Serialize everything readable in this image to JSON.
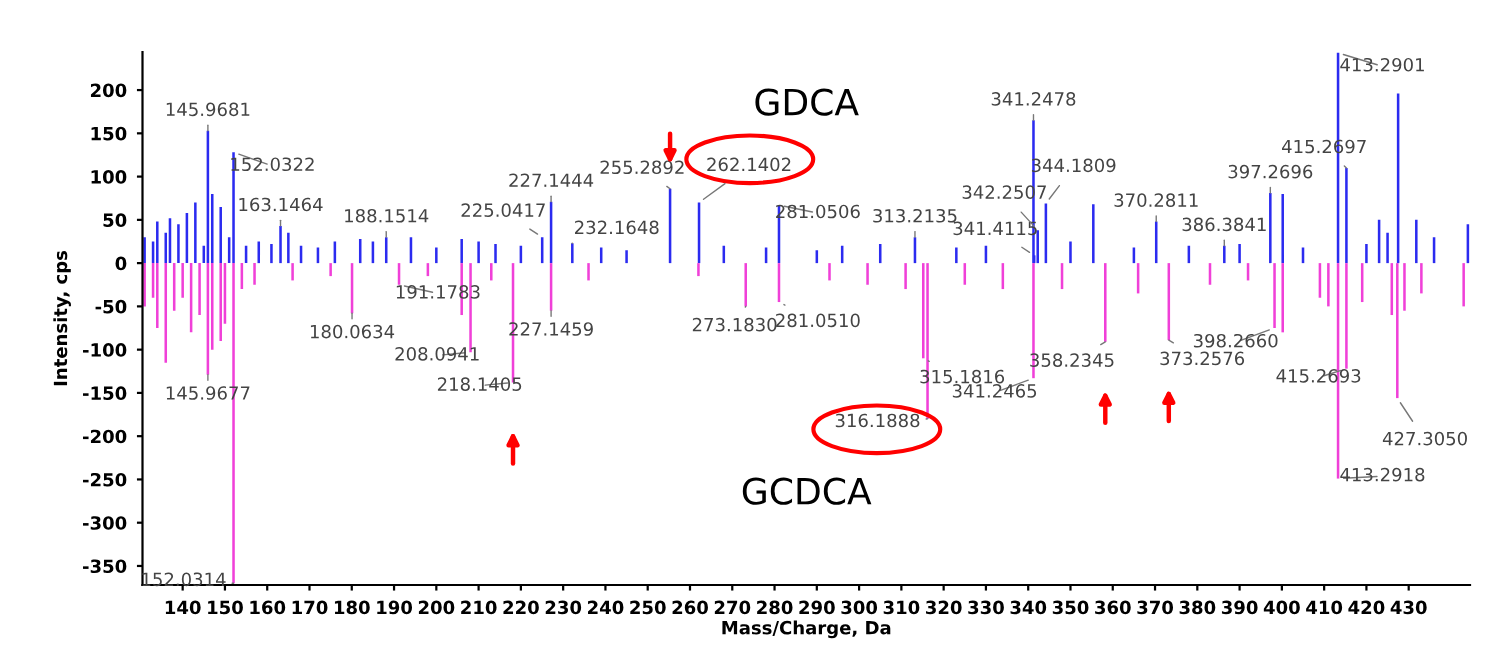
{
  "chart_data": {
    "type": "bar",
    "xlabel": "Mass/Charge, Da",
    "ylabel": "Intensity, cps",
    "xlim": [
      130.5,
      444.5
    ],
    "ylim": [
      -372,
      244
    ],
    "xticks": [
      140,
      150,
      160,
      170,
      180,
      190,
      200,
      210,
      220,
      230,
      240,
      250,
      260,
      270,
      280,
      290,
      300,
      310,
      320,
      330,
      340,
      350,
      360,
      370,
      380,
      390,
      400,
      410,
      420,
      430
    ],
    "yticks": [
      -350,
      -300,
      -250,
      -200,
      -150,
      -100,
      -50,
      0,
      50,
      100,
      150,
      200
    ],
    "grid": false,
    "legend": false,
    "series": [
      {
        "name": "GDCA",
        "color": "#2b2bf0",
        "x": [
          131,
          133,
          134,
          136,
          137,
          139,
          141,
          143,
          145,
          145.9681,
          147,
          149,
          151,
          152.0322,
          155,
          158,
          161,
          163.1464,
          165,
          168,
          172,
          176,
          182,
          185,
          188.1514,
          194,
          200,
          206,
          210,
          214,
          220,
          225.0417,
          227.1444,
          232.1648,
          239,
          245,
          255.2892,
          262.1402,
          268,
          278,
          281.0506,
          290,
          296,
          305,
          313.2135,
          323,
          330,
          341.2478,
          341.4115,
          342.2507,
          344.1809,
          350,
          355.4,
          365,
          370.2811,
          378,
          386.3841,
          390,
          397.2696,
          400.2,
          405,
          413.2901,
          415.2697,
          420,
          423,
          425,
          427.5,
          431.8,
          436,
          444
        ],
        "values": [
          30,
          25,
          48,
          35,
          52,
          45,
          58,
          70,
          20,
          153,
          80,
          65,
          30,
          128,
          20,
          25,
          22,
          43,
          35,
          20,
          18,
          25,
          28,
          25,
          30,
          30,
          18,
          28,
          25,
          22,
          20,
          30,
          71,
          23,
          18,
          15,
          86,
          70,
          20,
          18,
          67,
          15,
          20,
          22,
          30,
          18,
          20,
          165,
          9,
          38,
          69,
          25,
          68,
          18,
          48,
          20,
          20,
          22,
          81,
          80,
          18,
          243,
          110,
          22,
          50,
          35,
          196,
          50,
          30,
          45
        ]
      },
      {
        "name": "GCDCA",
        "color": "#f040d8",
        "x": [
          131,
          133,
          134,
          136,
          138,
          140,
          142,
          144,
          145.9677,
          147,
          149,
          150,
          152.0314,
          154,
          157,
          166,
          175,
          180.0634,
          191.1783,
          198,
          206,
          208.0941,
          213,
          218.1405,
          227.1459,
          236,
          262,
          273.183,
          281.051,
          293,
          302,
          311,
          315.1816,
          316.1888,
          325,
          334,
          341.2465,
          348,
          358.2345,
          366,
          373.2576,
          383,
          392,
          398.266,
          400.2,
          409,
          411,
          413.2918,
          415.2693,
          419,
          426,
          427.305,
          429,
          433,
          443
        ],
        "values": [
          -50,
          -40,
          -75,
          -115,
          -55,
          -40,
          -80,
          -60,
          -129,
          -100,
          -90,
          -70,
          -370,
          -30,
          -25,
          -20,
          -15,
          -58,
          -25,
          -15,
          -60,
          -103,
          -20,
          -138,
          -55,
          -20,
          -15,
          -50,
          -45,
          -20,
          -25,
          -30,
          -110,
          -180,
          -25,
          -30,
          -133,
          -30,
          -91,
          -35,
          -89,
          -25,
          -20,
          -75,
          -80,
          -40,
          -50,
          -249,
          -122,
          -45,
          -60,
          -156,
          -55,
          -35,
          -50
        ]
      }
    ],
    "annotations": [
      {
        "text": "145.9681",
        "x": 145.9681,
        "y": 153
      },
      {
        "text": "152.0322",
        "x": 152.0322,
        "y": 128
      },
      {
        "text": "163.1464",
        "x": 163.1464,
        "y": 43
      },
      {
        "text": "188.1514",
        "x": 188.1514,
        "y": 30
      },
      {
        "text": "225.0417",
        "x": 225.0417,
        "y": 30
      },
      {
        "text": "227.1444",
        "x": 227.1444,
        "y": 71
      },
      {
        "text": "232.1648",
        "x": 232.1648,
        "y": 23
      },
      {
        "text": "255.2892",
        "x": 255.2892,
        "y": 86
      },
      {
        "text": "262.1402",
        "x": 262.1402,
        "y": 70
      },
      {
        "text": "281.0506",
        "x": 281.0506,
        "y": 67
      },
      {
        "text": "313.2135",
        "x": 313.2135,
        "y": 30
      },
      {
        "text": "341.2478",
        "x": 341.2478,
        "y": 165
      },
      {
        "text": "341.4115",
        "x": 341.4115,
        "y": 9
      },
      {
        "text": "342.2507",
        "x": 342.2507,
        "y": 38
      },
      {
        "text": "344.1809",
        "x": 344.1809,
        "y": 69
      },
      {
        "text": "370.2811",
        "x": 370.2811,
        "y": 48
      },
      {
        "text": "386.3841",
        "x": 386.3841,
        "y": 20
      },
      {
        "text": "397.2696",
        "x": 397.2696,
        "y": 81
      },
      {
        "text": "413.2901",
        "x": 413.2901,
        "y": 243
      },
      {
        "text": "415.2697",
        "x": 415.2697,
        "y": 110
      },
      {
        "text": "145.9677",
        "x": 145.9677,
        "y": -129
      },
      {
        "text": "152.0314",
        "x": 152.0314,
        "y": -370
      },
      {
        "text": "180.0634",
        "x": 180.0634,
        "y": -58
      },
      {
        "text": "191.1783",
        "x": 191.1783,
        "y": -25
      },
      {
        "text": "208.0941",
        "x": 208.0941,
        "y": -103
      },
      {
        "text": "218.1405",
        "x": 218.1405,
        "y": -138
      },
      {
        "text": "227.1459",
        "x": 227.1459,
        "y": -55
      },
      {
        "text": "273.1830",
        "x": 273.183,
        "y": -50
      },
      {
        "text": "281.0510",
        "x": 281.051,
        "y": -45
      },
      {
        "text": "315.1816",
        "x": 315.1816,
        "y": -110
      },
      {
        "text": "316.1888",
        "x": 316.1888,
        "y": -180
      },
      {
        "text": "341.2465",
        "x": 341.2465,
        "y": -133
      },
      {
        "text": "358.2345",
        "x": 358.2345,
        "y": -91
      },
      {
        "text": "373.2576",
        "x": 373.2576,
        "y": -89
      },
      {
        "text": "398.2660",
        "x": 398.266,
        "y": -75
      },
      {
        "text": "415.2693",
        "x": 415.2693,
        "y": -122
      },
      {
        "text": "413.2918",
        "x": 413.2918,
        "y": -249
      },
      {
        "text": "427.3050",
        "x": 427.305,
        "y": -156
      }
    ]
  }
}
